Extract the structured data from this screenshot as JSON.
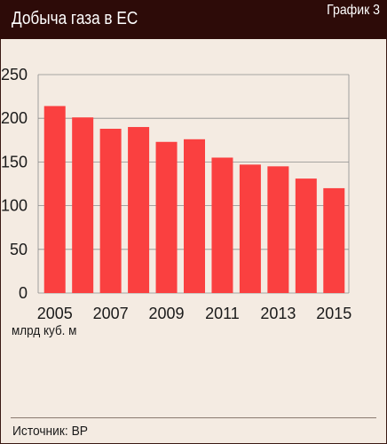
{
  "header": {
    "title": "Добыча газа в ЕС",
    "chart_label": "График 3"
  },
  "footer": {
    "unit": "млрд куб. м",
    "source": "Источник: BP"
  },
  "colors": {
    "header_bg": "#2d0b08",
    "bar": "#fa4040",
    "background": "#f4ebe2",
    "grid": "#8c8c8c"
  },
  "chart_data": {
    "type": "bar",
    "categories": [
      "2005",
      "2006",
      "2007",
      "2008",
      "2009",
      "2010",
      "2011",
      "2012",
      "2013",
      "2014",
      "2015"
    ],
    "values": [
      214,
      201,
      188,
      190,
      173,
      176,
      155,
      147,
      145,
      131,
      120
    ],
    "x_tick_labels": [
      "2005",
      "2007",
      "2009",
      "2011",
      "2013",
      "2015"
    ],
    "y_ticks": [
      0,
      50,
      100,
      150,
      200,
      250
    ],
    "ylim": [
      0,
      250
    ],
    "title": "Добыча газа в ЕС",
    "ylabel": "млрд куб. м",
    "xlabel": "",
    "grid": true
  }
}
